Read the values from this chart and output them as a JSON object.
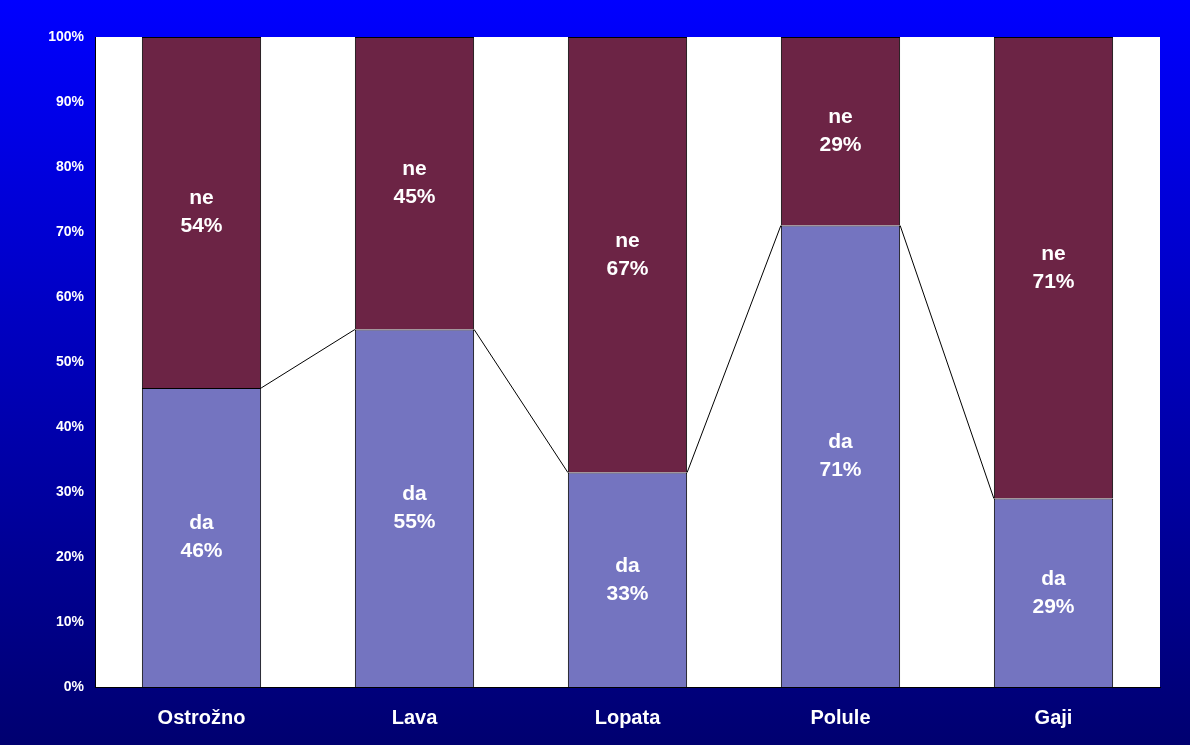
{
  "chart_data": {
    "type": "bar",
    "stacked": true,
    "categories": [
      "Ostrožno",
      "Lava",
      "Lopata",
      "Polule",
      "Gaji"
    ],
    "series": [
      {
        "name": "da",
        "color": "#7474c0",
        "values": [
          46,
          55,
          33,
          71,
          29
        ],
        "value_labels": [
          "46%",
          "55%",
          "33%",
          "71%",
          "29%"
        ]
      },
      {
        "name": "ne",
        "color": "#6c2445",
        "values": [
          54,
          45,
          67,
          29,
          71
        ],
        "value_labels": [
          "54%",
          "45%",
          "67%",
          "29%",
          "71%"
        ]
      }
    ],
    "ylim": [
      0,
      100
    ],
    "yticks": [
      {
        "value": 0,
        "label": "0%"
      },
      {
        "value": 10,
        "label": "10%"
      },
      {
        "value": 20,
        "label": "20%"
      },
      {
        "value": 30,
        "label": "30%"
      },
      {
        "value": 40,
        "label": "40%"
      },
      {
        "value": 50,
        "label": "50%"
      },
      {
        "value": 60,
        "label": "60%"
      },
      {
        "value": 70,
        "label": "70%"
      },
      {
        "value": 80,
        "label": "80%"
      },
      {
        "value": 90,
        "label": "90%"
      },
      {
        "value": 100,
        "label": "100%"
      }
    ],
    "grid": false,
    "legend": false
  }
}
